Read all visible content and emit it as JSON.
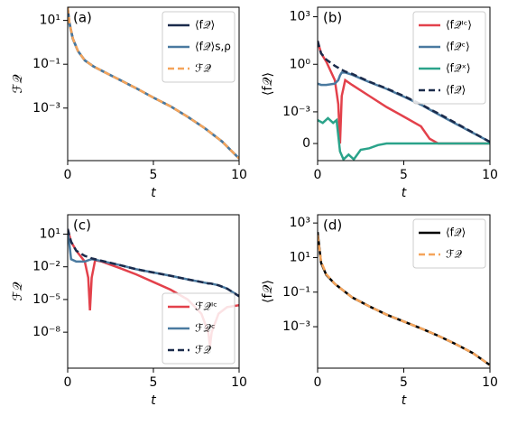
{
  "chart_data": [
    {
      "type": "line",
      "label": "(a)",
      "xlabel": "t",
      "ylabel": "ℱ𝒬",
      "yscale": "log",
      "legend": "upper right",
      "xlim": [
        0,
        10
      ],
      "xticks": [
        0,
        5,
        10
      ],
      "ylim": [
        4e-06,
        40
      ],
      "yticks": [
        {
          "value": 10,
          "label": "10¹"
        },
        {
          "value": 0.1,
          "label": "10⁻¹"
        },
        {
          "value": 0.001,
          "label": "10⁻³"
        }
      ],
      "x": [
        0,
        0.1,
        0.3,
        0.6,
        1,
        1.5,
        2,
        3,
        4,
        5,
        6,
        7,
        8,
        9,
        10
      ],
      "series": [
        {
          "name": "⟨f𝒬⟩",
          "color": "#1b2b4b",
          "values": [
            40,
            8,
            1.5,
            0.4,
            0.15,
            0.08,
            0.05,
            0.02,
            0.008,
            0.003,
            0.0012,
            0.0004,
            0.00012,
            3e-05,
            5e-06
          ]
        },
        {
          "name": "⟨f𝒬⟩s,ρ",
          "color": "#4a7aa0",
          "values": [
            20,
            7,
            1.4,
            0.4,
            0.15,
            0.08,
            0.05,
            0.02,
            0.008,
            0.003,
            0.0012,
            0.0004,
            0.00012,
            3e-05,
            5e-06
          ]
        },
        {
          "name": "ℱ𝒬",
          "color": "#f5a45a",
          "dash": true,
          "values": [
            40,
            8,
            1.5,
            0.4,
            0.15,
            0.08,
            0.05,
            0.02,
            0.008,
            0.003,
            0.0012,
            0.0004,
            0.00012,
            3e-05,
            5e-06
          ]
        }
      ]
    },
    {
      "type": "line",
      "label": "(b)",
      "xlabel": "t",
      "ylabel": "⟨f𝒬⟩",
      "yscale": "symlog",
      "linthresh": 0.0001,
      "legend": "upper right",
      "xlim": [
        0,
        10
      ],
      "xticks": [
        0,
        5,
        10
      ],
      "ylim": [
        -0.00012,
        4000
      ],
      "yticks": [
        {
          "value": 1000,
          "label": "10³"
        },
        {
          "value": 1,
          "label": "10⁰"
        },
        {
          "value": 0.001,
          "label": "10⁻³"
        },
        0
      ],
      "x": [
        0,
        0.2,
        0.5,
        1,
        1.2,
        1.3,
        1.4,
        1.6,
        2,
        3,
        4,
        5,
        6,
        6.5,
        7,
        8,
        10
      ],
      "series": [
        {
          "name": "⟨f𝒬ᴵᶜ⟩",
          "color": "#e3414b",
          "values": [
            30,
            5,
            1.5,
            0.1,
            0.003,
            0,
            0.01,
            0.1,
            0.05,
            0.01,
            0.002,
            0.0005,
            0.00012,
            3e-05,
            0,
            0,
            0
          ]
        },
        {
          "name": "⟨f𝒬ᶜ⟩",
          "color": "#4a7aa0",
          "values": [
            0.06,
            0.05,
            0.05,
            0.06,
            0.1,
            0.2,
            0.3,
            0.3,
            0.22,
            0.075,
            0.028,
            0.009,
            0.0028,
            0.0014,
            0.0007,
            0.00018,
            1e-05
          ]
        },
        {
          "name": "⟨f𝒬ˣ⟩",
          "color": "#2aa38a",
          "x": [
            0,
            0.3,
            0.6,
            0.9,
            1.1,
            1.3,
            1.5,
            1.8,
            2.1,
            2.5,
            3,
            3.5,
            4,
            5,
            6,
            8,
            10
          ],
          "values": [
            0.0003,
            0.0002,
            0.0004,
            0.0002,
            0.0003,
            -5e-05,
            -0.0001,
            -7e-05,
            -0.0001,
            -4e-05,
            -3e-05,
            -1e-05,
            0,
            0,
            0,
            0,
            0
          ]
        },
        {
          "name": "⟨f𝒬⟩",
          "color": "#1b2b4b",
          "dash": true,
          "values": [
            30,
            5,
            2,
            0.8,
            0.6,
            0.5,
            0.45,
            0.35,
            0.25,
            0.08,
            0.03,
            0.01,
            0.003,
            0.0015,
            0.0008,
            0.0002,
            1e-05
          ]
        }
      ]
    },
    {
      "type": "line",
      "label": "(c)",
      "xlabel": "t",
      "ylabel": "ℱ𝒬",
      "yscale": "log",
      "legend": "lower right",
      "xlim": [
        0,
        10
      ],
      "xticks": [
        0,
        5,
        10
      ],
      "ylim": [
        5e-12,
        600
      ],
      "yticks": [
        {
          "value": 10,
          "label": "10¹"
        },
        {
          "value": 0.01,
          "label": "10⁻²"
        },
        {
          "value": 1e-05,
          "label": "10⁻⁵"
        },
        {
          "value": 1e-08,
          "label": "10⁻⁸"
        }
      ],
      "x": [
        0,
        0.2,
        0.5,
        1,
        1.2,
        1.3,
        1.4,
        1.6,
        2,
        3,
        4,
        5,
        6,
        7,
        7.8,
        8.2,
        8.3,
        8.4,
        8.8,
        9.3,
        10
      ],
      "series": [
        {
          "name": "ℱ𝒬ᴵᶜ",
          "color": "#e3414b",
          "values": [
            30,
            2,
            0.3,
            0.03,
            0.001,
            1e-06,
            0.001,
            0.04,
            0.03,
            0.008,
            0.002,
            0.0004,
            8e-05,
            1e-05,
            5e-07,
            1e-08,
            5e-10,
            1e-08,
            5e-07,
            2e-06,
            3e-06
          ]
        },
        {
          "name": "ℱ𝒬ᶜ",
          "color": "#4a7aa0",
          "values": [
            30,
            0.05,
            0.03,
            0.03,
            0.04,
            0.045,
            0.05,
            0.045,
            0.033,
            0.015,
            0.006,
            0.003,
            0.0015,
            0.0007,
            0.0004,
            0.0003,
            0.0003,
            0.00028,
            0.0002,
            0.0001,
            2e-05
          ]
        },
        {
          "name": "ℱ𝒬",
          "color": "#1b2b4b",
          "dash": true,
          "values": [
            30,
            2,
            0.3,
            0.1,
            0.08,
            0.07,
            0.06,
            0.05,
            0.035,
            0.015,
            0.006,
            0.003,
            0.0015,
            0.0007,
            0.0004,
            0.0003,
            0.0003,
            0.00028,
            0.0002,
            0.0001,
            2e-05
          ]
        }
      ]
    },
    {
      "type": "line",
      "label": "(d)",
      "xlabel": "t",
      "ylabel": "⟨f𝒬⟩",
      "yscale": "log",
      "legend": "upper right",
      "xlim": [
        0,
        10
      ],
      "xticks": [
        0,
        5,
        10
      ],
      "ylim": [
        4e-06,
        3000
      ],
      "yticks": [
        {
          "value": 1000,
          "label": "10³"
        },
        {
          "value": 10,
          "label": "10¹"
        },
        {
          "value": 0.1,
          "label": "10⁻¹"
        },
        {
          "value": 0.001,
          "label": "10⁻³"
        }
      ],
      "x": [
        0,
        0.2,
        0.5,
        1,
        2,
        3,
        4,
        5,
        6,
        7,
        8,
        9,
        10
      ],
      "series": [
        {
          "name": "⟨f𝒬⟩",
          "color": "#000000",
          "values": [
            300,
            5,
            1,
            0.3,
            0.05,
            0.015,
            0.005,
            0.002,
            0.0008,
            0.0003,
            0.0001,
            3e-05,
            6e-06
          ]
        },
        {
          "name": "ℱ𝒬",
          "color": "#f5a45a",
          "dash": true,
          "values": [
            200,
            6,
            1.1,
            0.3,
            0.05,
            0.015,
            0.005,
            0.002,
            0.0008,
            0.0003,
            0.0001,
            3e-05,
            6e-06
          ]
        }
      ]
    }
  ]
}
